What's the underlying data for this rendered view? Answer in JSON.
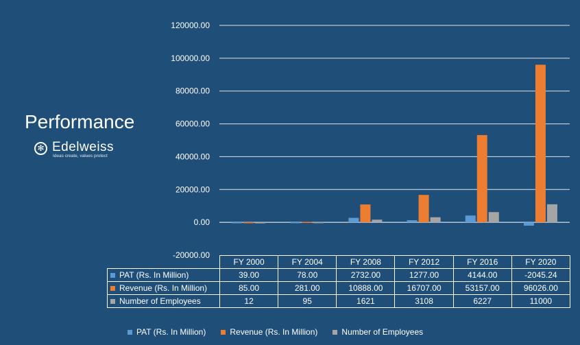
{
  "page": {
    "title": "Performance",
    "logo": {
      "name": "Edelweiss",
      "tagline": "Ideas create, values protect",
      "symbol": "✻"
    }
  },
  "chart_data": {
    "type": "bar",
    "title": "",
    "xlabel": "",
    "ylabel": "",
    "ylim": [
      -20000,
      120000
    ],
    "yticks": [
      -20000,
      0,
      20000,
      40000,
      60000,
      80000,
      100000,
      120000
    ],
    "ytick_labels": [
      "-20000.00",
      "0.00",
      "20000.00",
      "40000.00",
      "60000.00",
      "80000.00",
      "100000.00",
      "120000.00"
    ],
    "grid": true,
    "legend": "bottom",
    "categories": [
      "FY 2000",
      "FY 2004",
      "FY 2008",
      "FY 2012",
      "FY 2016",
      "FY 2020"
    ],
    "series": [
      {
        "name": "PAT (Rs. In Million)",
        "color": "#5b9bd5",
        "values": [
          39.0,
          78.0,
          2732.0,
          1277.0,
          4144.0,
          -2045.24
        ],
        "labels": [
          "39.00",
          "78.00",
          "2732.00",
          "1277.00",
          "4144.00",
          "-2045.24"
        ]
      },
      {
        "name": "Revenue (Rs. In Million)",
        "color": "#ed7d31",
        "values": [
          85.0,
          281.0,
          10888.0,
          16707.0,
          53157.0,
          96026.0
        ],
        "labels": [
          "85.00",
          "281.00",
          "10888.00",
          "16707.00",
          "53157.00",
          "96026.00"
        ]
      },
      {
        "name": "Number of Employees",
        "color": "#a5a5a5",
        "values": [
          12,
          95,
          1621,
          3108,
          6227,
          11000
        ],
        "labels": [
          "12",
          "95",
          "1621",
          "3108",
          "6227",
          "11000"
        ]
      }
    ]
  }
}
